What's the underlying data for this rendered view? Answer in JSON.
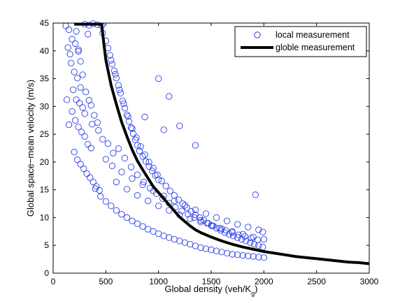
{
  "chart_data": {
    "type": "scatter",
    "title": "",
    "xlabel": "Global density (veh/K",
    "xlabel_sub": "g",
    "xlabel_end": ")",
    "ylabel": "Global space−mean velocity (m/s)",
    "xlim": [
      0,
      3000
    ],
    "ylim": [
      0,
      45
    ],
    "xticks": [
      0,
      500,
      1000,
      1500,
      2000,
      2500,
      3000
    ],
    "yticks": [
      0,
      5,
      10,
      15,
      20,
      25,
      30,
      35,
      40,
      45
    ],
    "grid": false,
    "legend_position": "top-right",
    "series": [
      {
        "name": "local measurement",
        "kind": "scatter",
        "marker": "open-circle",
        "color": "#2b3fe8",
        "points": [
          [
            120,
            44.5
          ],
          [
            150,
            43.8
          ],
          [
            180,
            42.1
          ],
          [
            140,
            40.6
          ],
          [
            210,
            41.3
          ],
          [
            240,
            39.9
          ],
          [
            170,
            37.8
          ],
          [
            200,
            36.2
          ],
          [
            230,
            35.1
          ],
          [
            260,
            33.4
          ],
          [
            190,
            33.0
          ],
          [
            220,
            31.2
          ],
          [
            250,
            30.6
          ],
          [
            280,
            29.8
          ],
          [
            300,
            28.7
          ],
          [
            210,
            27.5
          ],
          [
            240,
            26.3
          ],
          [
            270,
            25.4
          ],
          [
            300,
            24.6
          ],
          [
            330,
            23.2
          ],
          [
            360,
            22.5
          ],
          [
            200,
            21.8
          ],
          [
            230,
            20.4
          ],
          [
            260,
            19.6
          ],
          [
            290,
            18.8
          ],
          [
            320,
            17.9
          ],
          [
            350,
            17.2
          ],
          [
            380,
            16.4
          ],
          [
            410,
            15.6
          ],
          [
            440,
            14.9
          ],
          [
            300,
            44.8
          ],
          [
            340,
            44.6
          ],
          [
            380,
            44.9
          ],
          [
            420,
            44.7
          ],
          [
            460,
            44.5
          ],
          [
            330,
            43.0
          ],
          [
            470,
            43.2
          ],
          [
            500,
            41.8
          ],
          [
            520,
            40.5
          ],
          [
            540,
            39.2
          ],
          [
            560,
            37.6
          ],
          [
            580,
            36.4
          ],
          [
            600,
            35.1
          ],
          [
            620,
            33.8
          ],
          [
            640,
            32.4
          ],
          [
            660,
            31.0
          ],
          [
            680,
            29.7
          ],
          [
            700,
            28.5
          ],
          [
            720,
            27.3
          ],
          [
            740,
            26.2
          ],
          [
            760,
            25.1
          ],
          [
            780,
            24.0
          ],
          [
            800,
            23.0
          ],
          [
            820,
            22.0
          ],
          [
            850,
            21.0
          ],
          [
            880,
            20.1
          ],
          [
            910,
            19.2
          ],
          [
            940,
            18.4
          ],
          [
            970,
            17.6
          ],
          [
            1000,
            16.8
          ],
          [
            550,
            38.3
          ],
          [
            590,
            35.8
          ],
          [
            630,
            33.0
          ],
          [
            670,
            30.5
          ],
          [
            710,
            28.2
          ],
          [
            750,
            26.0
          ],
          [
            790,
            24.4
          ],
          [
            830,
            22.8
          ],
          [
            870,
            21.3
          ],
          [
            910,
            20.0
          ],
          [
            950,
            18.9
          ],
          [
            990,
            17.7
          ],
          [
            1030,
            16.6
          ],
          [
            1070,
            15.7
          ],
          [
            1110,
            14.8
          ],
          [
            1150,
            14.0
          ],
          [
            1190,
            13.2
          ],
          [
            1230,
            12.5
          ],
          [
            1270,
            11.8
          ],
          [
            1310,
            11.1
          ],
          [
            1350,
            10.5
          ],
          [
            1390,
            10.0
          ],
          [
            1430,
            9.5
          ],
          [
            1470,
            9.0
          ],
          [
            1510,
            8.5
          ],
          [
            1550,
            8.1
          ],
          [
            1590,
            7.7
          ],
          [
            1630,
            7.3
          ],
          [
            1670,
            7.0
          ],
          [
            1710,
            6.7
          ],
          [
            1750,
            6.4
          ],
          [
            1790,
            6.1
          ],
          [
            1830,
            5.8
          ],
          [
            1870,
            5.5
          ],
          [
            1910,
            5.2
          ],
          [
            1950,
            5.0
          ],
          [
            1990,
            4.7
          ],
          [
            400,
            15.2
          ],
          [
            450,
            13.8
          ],
          [
            500,
            12.9
          ],
          [
            550,
            12.1
          ],
          [
            600,
            11.3
          ],
          [
            650,
            10.6
          ],
          [
            700,
            10.0
          ],
          [
            750,
            9.4
          ],
          [
            800,
            8.9
          ],
          [
            850,
            8.4
          ],
          [
            900,
            7.9
          ],
          [
            950,
            7.5
          ],
          [
            1000,
            7.1
          ],
          [
            1050,
            6.7
          ],
          [
            1100,
            6.4
          ],
          [
            1150,
            6.1
          ],
          [
            1200,
            5.8
          ],
          [
            1250,
            5.5
          ],
          [
            1300,
            5.2
          ],
          [
            1350,
            4.9
          ],
          [
            1400,
            4.6
          ],
          [
            1450,
            4.4
          ],
          [
            1500,
            4.2
          ],
          [
            1550,
            4.0
          ],
          [
            1600,
            3.8
          ],
          [
            1650,
            3.6
          ],
          [
            1700,
            3.4
          ],
          [
            1750,
            3.3
          ],
          [
            1800,
            3.2
          ],
          [
            1850,
            3.1
          ],
          [
            1900,
            3.0
          ],
          [
            1950,
            2.9
          ],
          [
            2000,
            2.8
          ],
          [
            1000,
            35.0
          ],
          [
            1100,
            31.8
          ],
          [
            1200,
            26.5
          ],
          [
            1050,
            25.8
          ],
          [
            1350,
            23.0
          ],
          [
            870,
            28.1
          ],
          [
            1920,
            14.1
          ],
          [
            600,
            16.4
          ],
          [
            700,
            15.1
          ],
          [
            800,
            14.0
          ],
          [
            900,
            13.0
          ],
          [
            1000,
            12.1
          ],
          [
            1100,
            11.3
          ],
          [
            1200,
            10.5
          ],
          [
            1300,
            9.8
          ],
          [
            1400,
            9.2
          ],
          [
            1500,
            8.6
          ],
          [
            1600,
            8.0
          ],
          [
            1700,
            7.5
          ],
          [
            1800,
            7.0
          ],
          [
            1900,
            6.5
          ],
          [
            2000,
            6.1
          ],
          [
            650,
            18.2
          ],
          [
            750,
            17.0
          ],
          [
            850,
            15.9
          ],
          [
            950,
            14.8
          ],
          [
            1050,
            13.9
          ],
          [
            1150,
            13.0
          ],
          [
            1250,
            12.2
          ],
          [
            1350,
            11.4
          ],
          [
            1450,
            10.7
          ],
          [
            1550,
            10.0
          ],
          [
            1650,
            9.4
          ],
          [
            1750,
            8.8
          ],
          [
            1850,
            8.3
          ],
          [
            1950,
            7.8
          ],
          [
            500,
            20.5
          ],
          [
            560,
            19.3
          ],
          [
            620,
            22.4
          ],
          [
            680,
            20.7
          ],
          [
            740,
            19.1
          ],
          [
            800,
            17.7
          ],
          [
            860,
            16.4
          ],
          [
            920,
            15.3
          ],
          [
            980,
            14.3
          ],
          [
            1040,
            13.4
          ],
          [
            1100,
            12.6
          ],
          [
            1160,
            11.9
          ],
          [
            1220,
            11.2
          ],
          [
            1280,
            10.6
          ],
          [
            1340,
            10.0
          ],
          [
            1400,
            9.5
          ],
          [
            1460,
            9.0
          ],
          [
            1520,
            8.5
          ],
          [
            1580,
            8.1
          ],
          [
            1640,
            7.7
          ],
          [
            1700,
            7.3
          ],
          [
            1760,
            6.9
          ],
          [
            1820,
            6.6
          ],
          [
            1880,
            6.3
          ],
          [
            1940,
            6.0
          ],
          [
            1990,
            7.4
          ],
          [
            430,
            25.7
          ],
          [
            470,
            24.1
          ],
          [
            520,
            23.3
          ],
          [
            570,
            21.6
          ],
          [
            360,
            30.2
          ],
          [
            390,
            28.4
          ],
          [
            420,
            27.1
          ],
          [
            310,
            32.6
          ],
          [
            340,
            31.1
          ],
          [
            370,
            26.8
          ],
          [
            280,
            35.7
          ],
          [
            260,
            38.1
          ],
          [
            240,
            40.2
          ],
          [
            220,
            43.5
          ],
          [
            160,
            39.4
          ],
          [
            130,
            31.2
          ],
          [
            180,
            29.1
          ],
          [
            150,
            26.7
          ]
        ]
      },
      {
        "name": "globle measurement",
        "kind": "line",
        "color": "#000000",
        "points": [
          [
            200,
            44.8
          ],
          [
            460,
            44.8
          ],
          [
            480,
            41.5
          ],
          [
            500,
            38.4
          ],
          [
            550,
            33.8
          ],
          [
            600,
            30.4
          ],
          [
            650,
            27.2
          ],
          [
            700,
            24.6
          ],
          [
            750,
            22.2
          ],
          [
            800,
            20.2
          ],
          [
            850,
            18.6
          ],
          [
            900,
            17.1
          ],
          [
            950,
            15.6
          ],
          [
            1000,
            14.5
          ],
          [
            1050,
            13.4
          ],
          [
            1100,
            12.3
          ],
          [
            1150,
            11.2
          ],
          [
            1200,
            10.1
          ],
          [
            1250,
            9.3
          ],
          [
            1300,
            8.5
          ],
          [
            1350,
            7.8
          ],
          [
            1400,
            7.3
          ],
          [
            1500,
            6.5
          ],
          [
            1600,
            5.8
          ],
          [
            1700,
            5.2
          ],
          [
            1800,
            4.7
          ],
          [
            1900,
            4.3
          ],
          [
            2000,
            3.9
          ],
          [
            2100,
            3.6
          ],
          [
            2200,
            3.3
          ],
          [
            2300,
            3.0
          ],
          [
            2400,
            2.8
          ],
          [
            2500,
            2.6
          ],
          [
            2600,
            2.4
          ],
          [
            2700,
            2.2
          ],
          [
            2800,
            2.0
          ],
          [
            2900,
            1.9
          ],
          [
            3000,
            1.7
          ]
        ]
      }
    ]
  }
}
